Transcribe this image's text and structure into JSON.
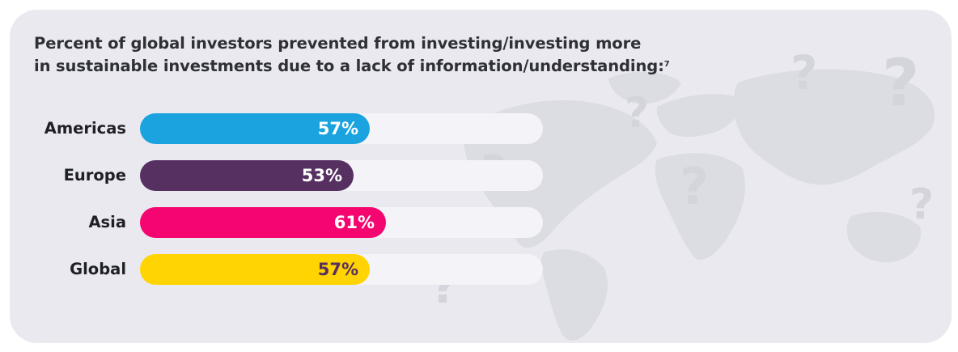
{
  "chart_data": {
    "type": "bar",
    "orientation": "horizontal",
    "title_line1": "Percent of global investors prevented from investing/investing more",
    "title_line2": "in sustainable investments due to a lack of information/understanding:",
    "title_superscript": "7",
    "categories": [
      "Americas",
      "Europe",
      "Asia",
      "Global"
    ],
    "values": [
      57,
      53,
      61,
      57
    ],
    "value_labels": [
      "57%",
      "53%",
      "61%",
      "57%"
    ],
    "colors": [
      "#1aa3de",
      "#573062",
      "#f5056f",
      "#ffd400"
    ],
    "label_colors": [
      "#ffffff",
      "#ffffff",
      "#ffffff",
      "#573062"
    ],
    "track_color": "#f4f4f8",
    "xlim": [
      0,
      100
    ],
    "grid": false,
    "legend": "none"
  },
  "background": {
    "card_color": "#e9e9ef",
    "decoration": "world-map-with-question-marks"
  }
}
